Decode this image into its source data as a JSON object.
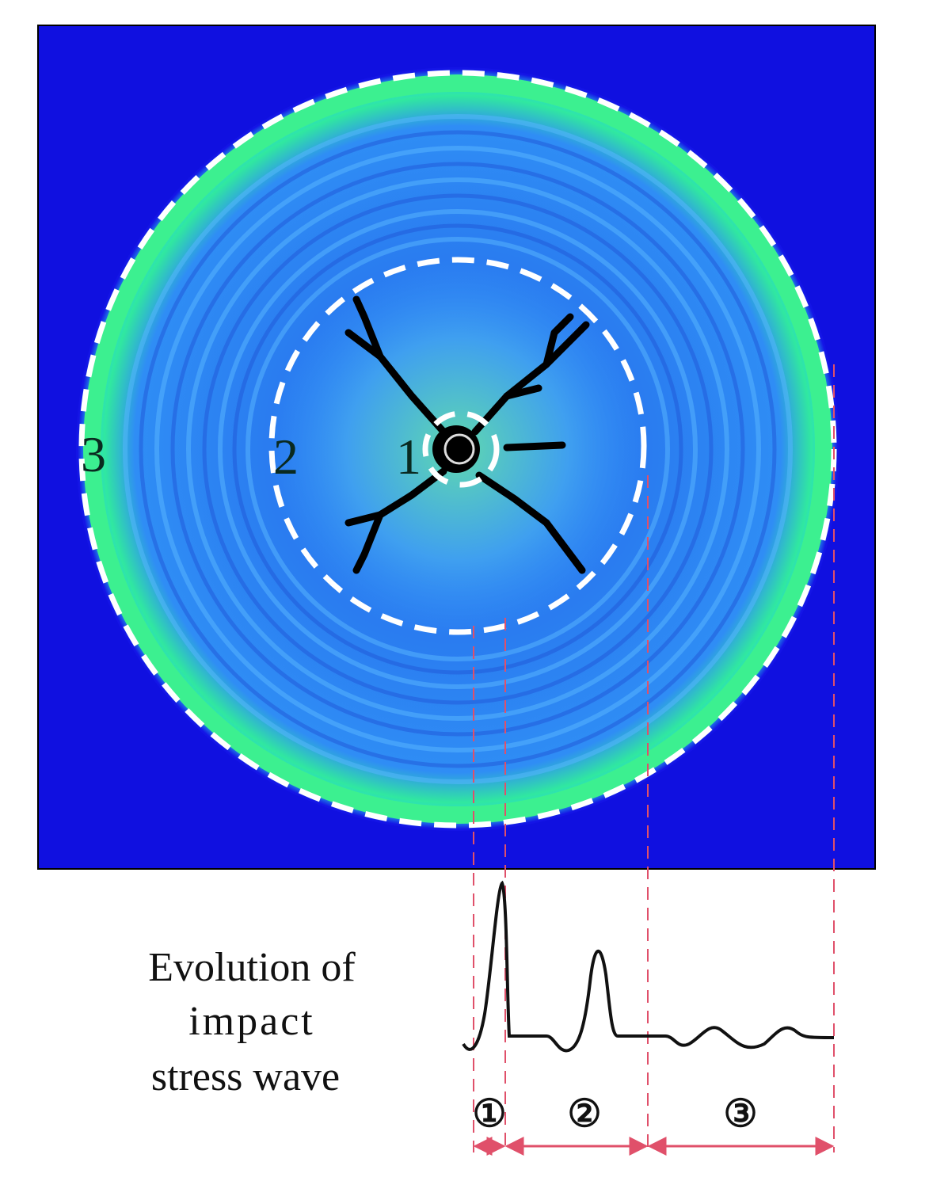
{
  "zone_labels": [
    "3",
    "2",
    "1"
  ],
  "caption": {
    "lines": [
      "Evolution of",
      "impact",
      "stress wave"
    ]
  },
  "phase_labels": [
    "①",
    "②",
    "③"
  ]
}
